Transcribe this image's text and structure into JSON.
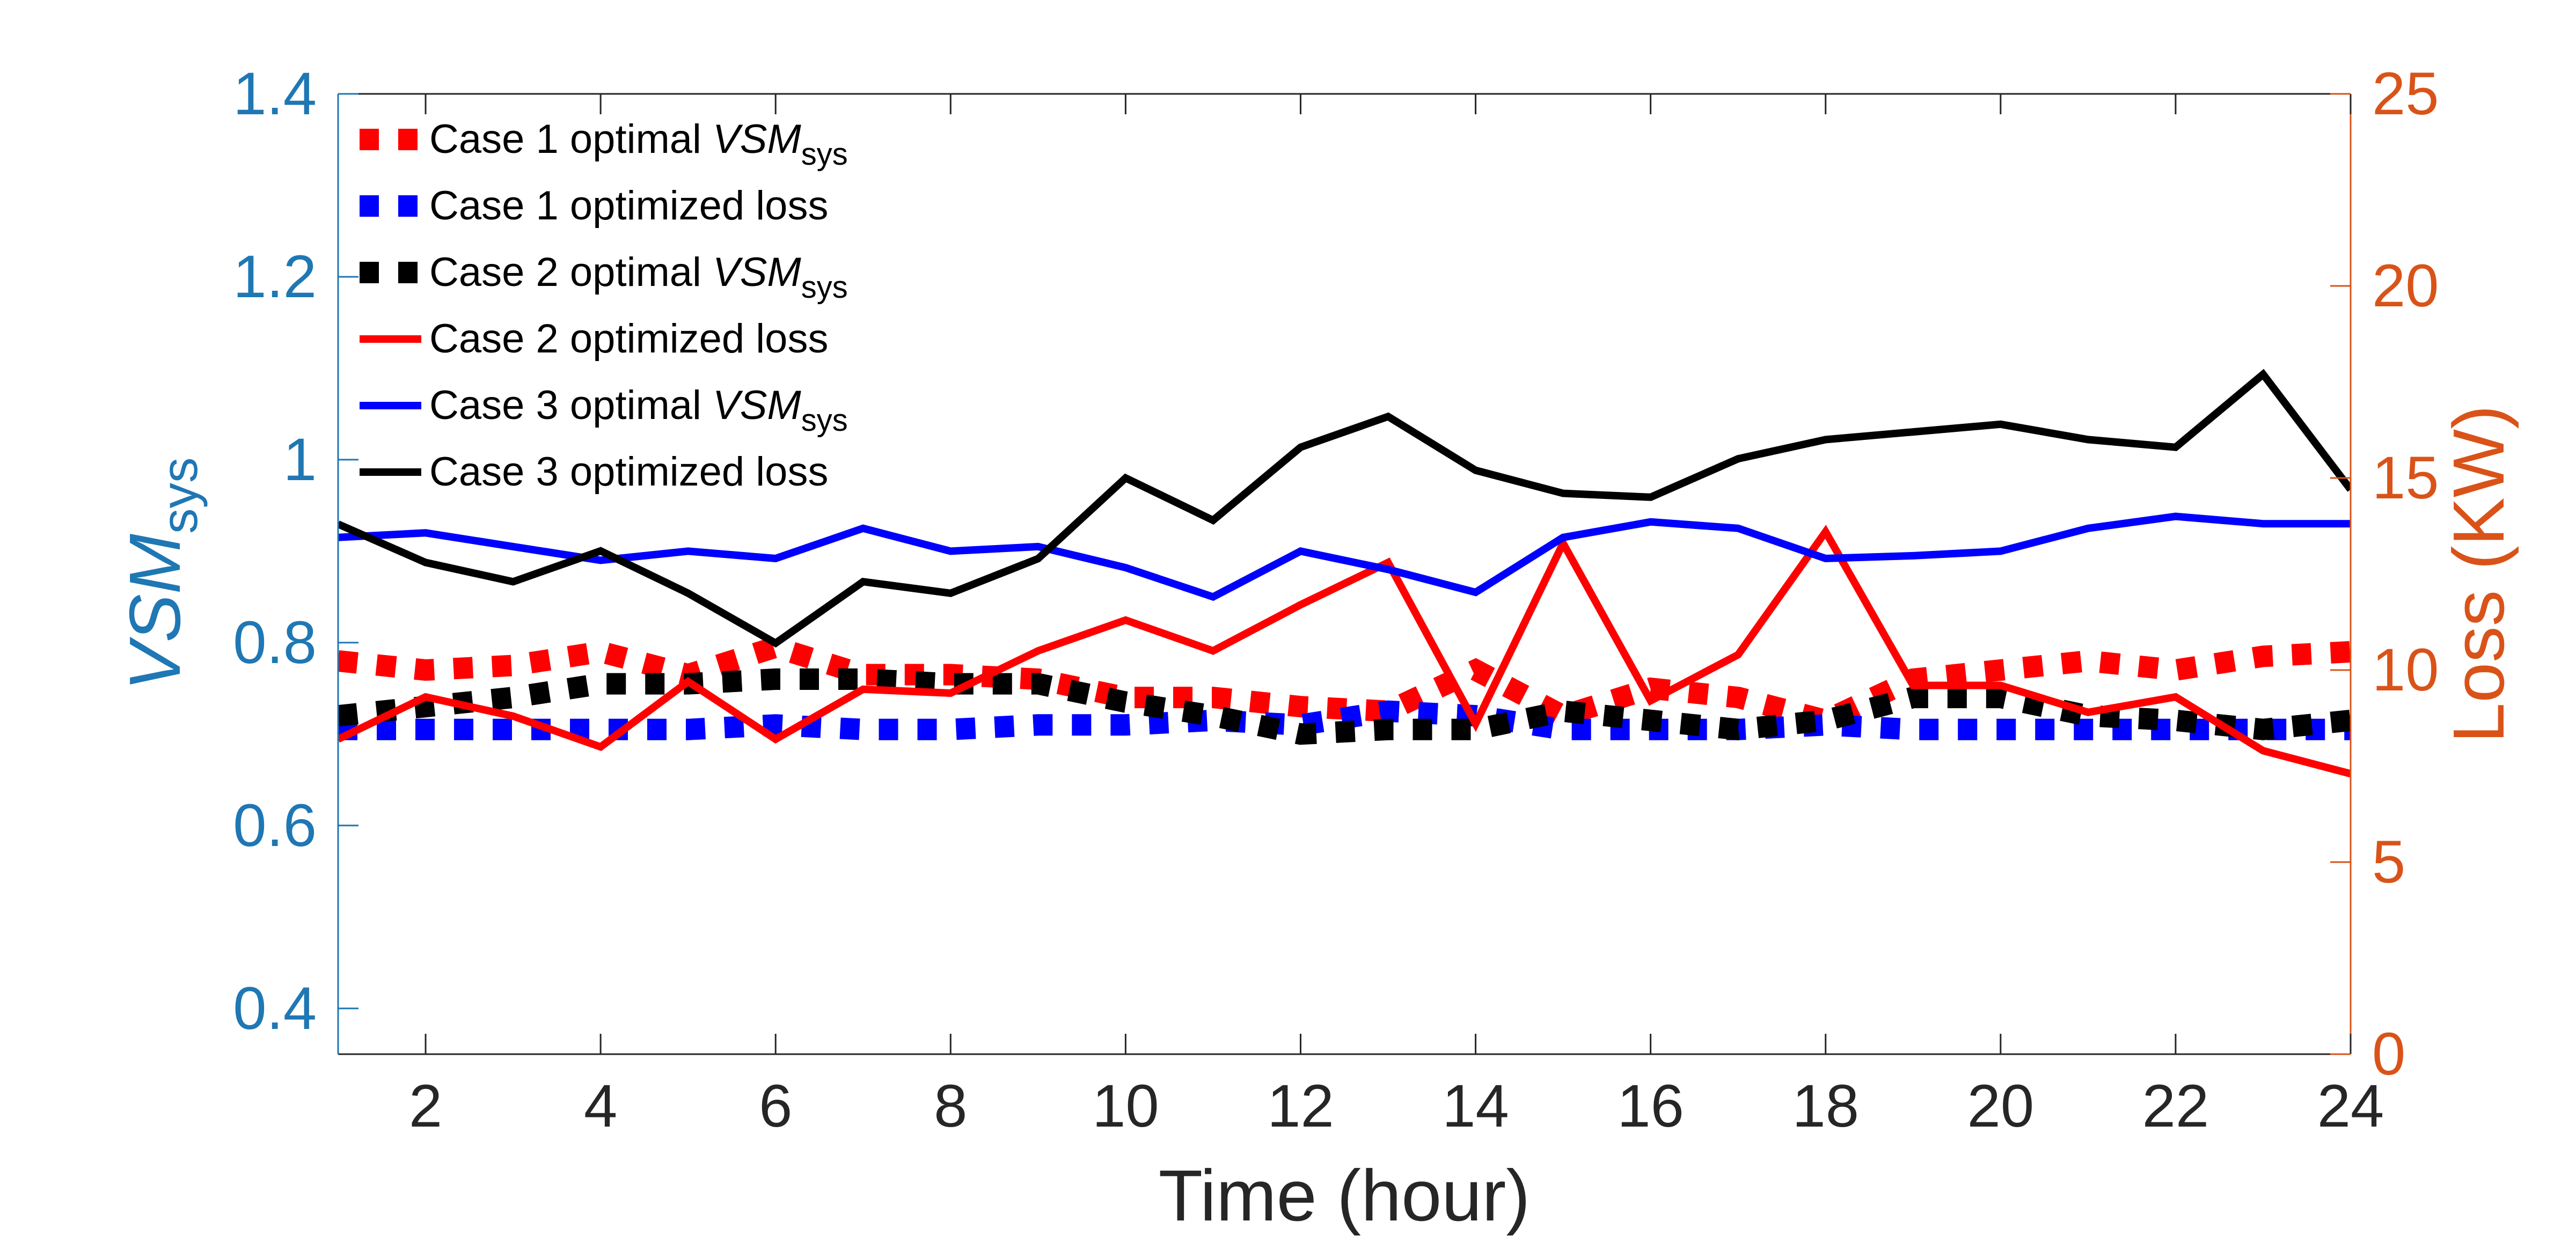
{
  "chart_data": {
    "type": "line",
    "xlabel": "Time (hour)",
    "ylabel_left": {
      "main": "VSM",
      "sub": "sys"
    },
    "ylabel_right": "Loss (KW)",
    "x_range": [
      1,
      24
    ],
    "x_ticks": [
      2,
      4,
      6,
      8,
      10,
      12,
      14,
      16,
      18,
      20,
      22,
      24
    ],
    "y_left_range": [
      0.35,
      1.4
    ],
    "y_left_ticks": [
      0.4,
      0.6,
      0.8,
      1,
      1.2,
      1.4
    ],
    "y_left_tick_labels": [
      "0.4",
      "0.6",
      "0.8",
      "1",
      "1.2",
      "1.4"
    ],
    "y_right_range": [
      0,
      25
    ],
    "y_right_ticks": [
      0,
      5,
      10,
      15,
      20,
      25
    ],
    "y_right_tick_labels": [
      "0",
      "5",
      "10",
      "15",
      "20",
      "25"
    ],
    "grid": false,
    "legend_placement": "top-left",
    "colors": {
      "left_axis": "#1f77b4",
      "right_axis": "#d95319",
      "red": "#ff0000",
      "blue": "#0000ff",
      "black": "#000000"
    },
    "x": [
      1,
      2,
      3,
      4,
      5,
      6,
      7,
      8,
      9,
      10,
      11,
      12,
      13,
      14,
      15,
      16,
      17,
      18,
      19,
      20,
      21,
      22,
      23,
      24
    ],
    "series": [
      {
        "name": "Case 1 optimal  VSM",
        "name_sub": "sys",
        "axis": "left",
        "color": "#ff0000",
        "style": "dotted",
        "values": [
          0.78,
          0.77,
          0.775,
          0.79,
          0.765,
          0.795,
          0.765,
          0.765,
          0.76,
          0.74,
          0.74,
          0.73,
          0.725,
          0.77,
          0.72,
          0.75,
          0.74,
          0.715,
          0.76,
          0.77,
          0.78,
          0.77,
          0.785,
          0.79
        ]
      },
      {
        "name": "Case 1 optimized loss",
        "axis": "left",
        "color": "#0000ff",
        "style": "dotted",
        "values": [
          0.705,
          0.705,
          0.705,
          0.705,
          0.705,
          0.71,
          0.705,
          0.705,
          0.71,
          0.71,
          0.715,
          0.71,
          0.725,
          0.72,
          0.705,
          0.705,
          0.705,
          0.71,
          0.705,
          0.705,
          0.705,
          0.705,
          0.705,
          0.705
        ]
      },
      {
        "name": "Case 2 optimal  VSM",
        "name_sub": "sys",
        "axis": "left",
        "color": "#000000",
        "style": "dotted",
        "values": [
          0.72,
          0.73,
          0.74,
          0.755,
          0.755,
          0.76,
          0.76,
          0.755,
          0.755,
          0.735,
          0.72,
          0.7,
          0.705,
          0.705,
          0.725,
          0.715,
          0.705,
          0.715,
          0.74,
          0.74,
          0.72,
          0.715,
          0.705,
          0.715
        ]
      },
      {
        "name": "Case 2 optimized loss",
        "axis": "right",
        "color": "#ff0000",
        "style": "solid",
        "values": [
          8.2,
          9.3,
          8.8,
          8.0,
          9.7,
          8.2,
          9.5,
          9.4,
          10.5,
          11.3,
          10.5,
          11.7,
          12.8,
          8.6,
          13.3,
          9.2,
          10.4,
          13.6,
          9.6,
          9.6,
          8.9,
          9.3,
          7.9,
          7.3
        ]
      },
      {
        "name": "Case 3 optimal  VSM",
        "name_sub": "sys",
        "axis": "left",
        "color": "#0000ff",
        "style": "solid",
        "values": [
          0.915,
          0.92,
          0.905,
          0.89,
          0.9,
          0.892,
          0.925,
          0.9,
          0.905,
          0.882,
          0.85,
          0.9,
          0.88,
          0.855,
          0.915,
          0.932,
          0.925,
          0.892,
          0.895,
          0.9,
          0.925,
          0.938,
          0.93,
          0.93
        ]
      },
      {
        "name": "Case 3 optimized loss",
        "axis": "right",
        "color": "#000000",
        "style": "solid",
        "values": [
          13.8,
          12.8,
          12.3,
          13.1,
          12.0,
          10.7,
          12.3,
          12.0,
          12.9,
          15.0,
          13.9,
          15.8,
          16.6,
          15.2,
          14.6,
          14.5,
          15.5,
          16.0,
          16.2,
          16.4,
          16.0,
          15.8,
          17.7,
          14.7
        ]
      }
    ]
  }
}
